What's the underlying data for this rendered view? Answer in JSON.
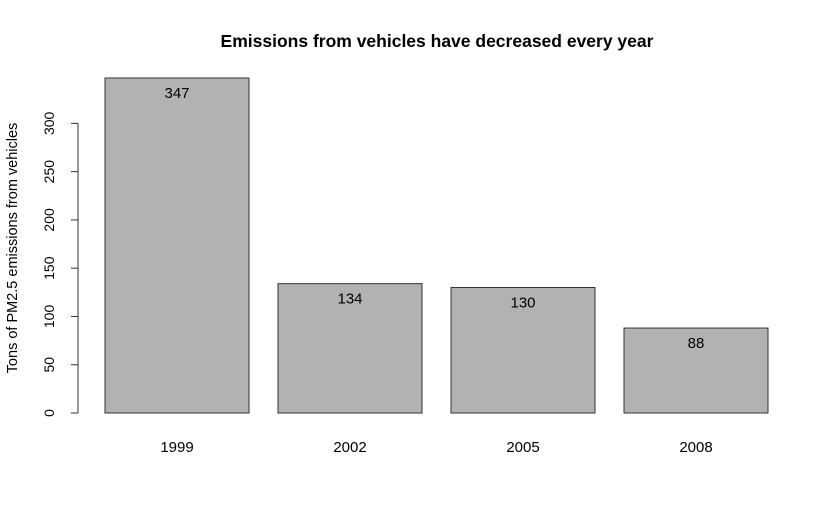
{
  "chart_data": {
    "type": "bar",
    "title": "Emissions from vehicles have decreased every year",
    "xlabel": "",
    "ylabel": "Tons of PM2.5 emissions from vehicles",
    "categories": [
      "1999",
      "2002",
      "2005",
      "2008"
    ],
    "values": [
      347,
      134,
      130,
      88
    ],
    "data_labels": [
      "347",
      "134",
      "130",
      "88"
    ],
    "yticks": [
      0,
      50,
      100,
      150,
      200,
      250,
      300
    ],
    "ylim": [
      0,
      347
    ],
    "grid": false,
    "legend": "none",
    "bar_color": "#b2b2b2",
    "bar_border_color": "#333333"
  }
}
